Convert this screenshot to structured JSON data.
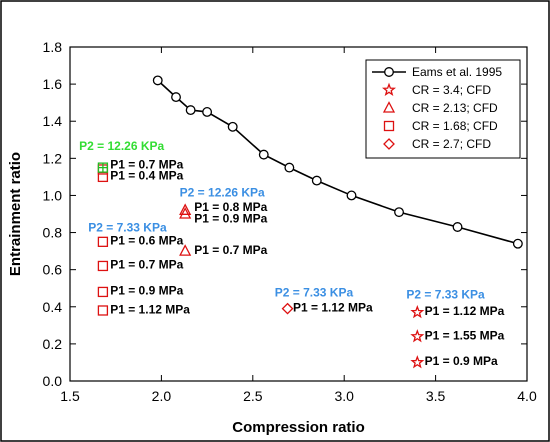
{
  "chart_data": {
    "type": "scatter",
    "xlabel": "Compression ratio",
    "ylabel": "Entrainment ratio",
    "xlim": [
      1.5,
      4.0
    ],
    "ylim": [
      0.0,
      1.8
    ],
    "xticks": [
      "1.5",
      "2.0",
      "2.5",
      "3.0",
      "3.5",
      "4.0"
    ],
    "yticks": [
      "0.0",
      "0.2",
      "0.4",
      "0.6",
      "0.8",
      "1.0",
      "1.2",
      "1.4",
      "1.6",
      "1.8"
    ],
    "grid": false,
    "legend_position": "top-right",
    "series": [
      {
        "name": "Eams et al. 1995",
        "marker": "circle",
        "line": true,
        "color": "#000000",
        "points": [
          [
            1.98,
            1.62
          ],
          [
            2.08,
            1.53
          ],
          [
            2.16,
            1.46
          ],
          [
            2.25,
            1.45
          ],
          [
            2.39,
            1.37
          ],
          [
            2.56,
            1.22
          ],
          [
            2.7,
            1.15
          ],
          [
            2.85,
            1.08
          ],
          [
            3.04,
            1.0
          ],
          [
            3.3,
            0.91
          ],
          [
            3.62,
            0.83
          ],
          [
            3.95,
            0.74
          ]
        ]
      },
      {
        "name": "CR = 3.4; CFD",
        "marker": "star",
        "color": "#dd1111",
        "points": [
          [
            3.4,
            0.37
          ],
          [
            3.4,
            0.24
          ],
          [
            3.4,
            0.1
          ]
        ]
      },
      {
        "name": "CR = 2.13; CFD",
        "marker": "triangle",
        "color": "#dd1111",
        "points": [
          [
            2.13,
            0.92
          ],
          [
            2.13,
            0.9
          ],
          [
            2.13,
            0.7
          ]
        ]
      },
      {
        "name": "CR = 1.68; CFD",
        "marker": "square",
        "color": "#dd1111",
        "points": [
          [
            1.68,
            1.14
          ],
          [
            1.68,
            1.1
          ],
          [
            1.68,
            0.75
          ],
          [
            1.68,
            0.62
          ],
          [
            1.68,
            0.48
          ],
          [
            1.68,
            0.38
          ]
        ]
      },
      {
        "name": "CR = 2.7; CFD",
        "marker": "diamond",
        "color": "#dd1111",
        "points": [
          [
            2.69,
            0.39
          ]
        ]
      }
    ],
    "extra_markers": [
      {
        "marker": "square",
        "color": "#22bb22",
        "point": [
          1.68,
          1.15
        ]
      },
      {
        "marker": "plus",
        "color": "#22bb22",
        "point": [
          1.68,
          1.15
        ]
      }
    ],
    "annotations": [
      {
        "text": "P2 = 12.26 KPa",
        "x": 1.55,
        "y": 1.245,
        "color": "#33dd33"
      },
      {
        "text": "P1 = 0.7 MPa",
        "x": 1.72,
        "y": 1.145,
        "color": "#000000"
      },
      {
        "text": "P1 = 0.4 MPa",
        "x": 1.72,
        "y": 1.085,
        "color": "#000000"
      },
      {
        "text": "P2 = 12.26 KPa",
        "x": 2.1,
        "y": 0.995,
        "color": "#3b8fe3"
      },
      {
        "text": "P1 = 0.8 MPa",
        "x": 2.18,
        "y": 0.915,
        "color": "#000000"
      },
      {
        "text": "P1 = 0.9 MPa",
        "x": 2.18,
        "y": 0.855,
        "color": "#000000"
      },
      {
        "text": "P2 = 7.33 KPa",
        "x": 1.6,
        "y": 0.805,
        "color": "#3b8fe3"
      },
      {
        "text": "P1 = 0.6 MPa",
        "x": 1.72,
        "y": 0.735,
        "color": "#000000"
      },
      {
        "text": "P1 = 0.7 MPa",
        "x": 2.18,
        "y": 0.685,
        "color": "#000000"
      },
      {
        "text": "P1 = 0.7 MPa",
        "x": 1.72,
        "y": 0.605,
        "color": "#000000"
      },
      {
        "text": "P1 = 0.9 MPa",
        "x": 1.72,
        "y": 0.465,
        "color": "#000000"
      },
      {
        "text": "P1 = 1.12 MPa",
        "x": 1.72,
        "y": 0.365,
        "color": "#000000"
      },
      {
        "text": "P2 = 7.33 KPa",
        "x": 2.62,
        "y": 0.455,
        "color": "#3b8fe3"
      },
      {
        "text": "P1 = 1.12 MPa",
        "x": 2.72,
        "y": 0.375,
        "color": "#000000"
      },
      {
        "text": "P2 = 7.33 KPa",
        "x": 3.34,
        "y": 0.445,
        "color": "#3b8fe3"
      },
      {
        "text": "P1 = 1.12 MPa",
        "x": 3.44,
        "y": 0.355,
        "color": "#000000"
      },
      {
        "text": "P1 = 1.55 MPa",
        "x": 3.44,
        "y": 0.225,
        "color": "#000000"
      },
      {
        "text": "P1 = 0.9 MPa",
        "x": 3.44,
        "y": 0.085,
        "color": "#000000"
      }
    ]
  }
}
